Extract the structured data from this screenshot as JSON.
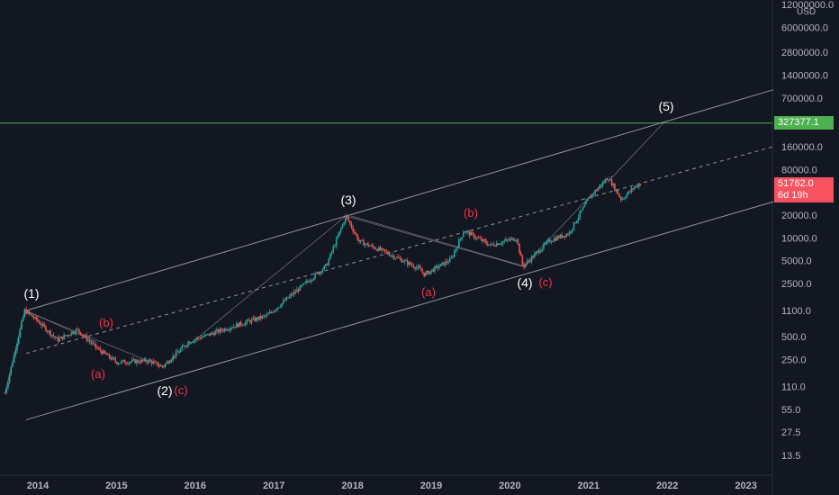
{
  "chart_data": {
    "type": "candlestick",
    "scale": "log",
    "currency": "USD",
    "y_ticks": [
      "12000000.0",
      "6000000.0",
      "2800000.0",
      "1400000.0",
      "700000.0",
      "327377.1",
      "160000.0",
      "80000.0",
      "51762.0",
      "20000.0",
      "10000.0",
      "5000.0",
      "2500.0",
      "1100.0",
      "500.0",
      "250.0",
      "110.0",
      "55.0",
      "27.5",
      "13.5"
    ],
    "y_tick_values": [
      12000000,
      6000000,
      2800000,
      1400000,
      700000,
      327377.1,
      160000,
      80000,
      51762,
      20000,
      10000,
      5000,
      2500,
      1100,
      500,
      250,
      110,
      55,
      27.5,
      13.5
    ],
    "x_ticks": [
      "2014",
      "2015",
      "2016",
      "2017",
      "2018",
      "2019",
      "2020",
      "2021",
      "2022",
      "2023"
    ],
    "target_level": {
      "value": "327377.1",
      "color": "#4caf50"
    },
    "current_price": {
      "value": "51762.0",
      "countdown": "6d 19h",
      "color": "#f7525f"
    },
    "wave_labels": {
      "major": [
        "(1)",
        "(2)",
        "(3)",
        "(4)",
        "(5)"
      ],
      "minor": [
        "(a)",
        "(b)",
        "(c)",
        "(a)",
        "(b)",
        "(c)"
      ]
    },
    "price_series": [
      [
        "2013-08",
        90
      ],
      [
        "2013-11",
        1100
      ],
      [
        "2014-01",
        800
      ],
      [
        "2014-04",
        450
      ],
      [
        "2014-07",
        620
      ],
      [
        "2014-10",
        350
      ],
      [
        "2015-01",
        230
      ],
      [
        "2015-06",
        240
      ],
      [
        "2015-08",
        200
      ],
      [
        "2015-12",
        430
      ],
      [
        "2016-06",
        650
      ],
      [
        "2016-12",
        950
      ],
      [
        "2017-05",
        2200
      ],
      [
        "2017-09",
        4300
      ],
      [
        "2017-12",
        19500
      ],
      [
        "2018-02",
        9000
      ],
      [
        "2018-06",
        6500
      ],
      [
        "2018-11",
        4000
      ],
      [
        "2018-12",
        3300
      ],
      [
        "2019-04",
        5200
      ],
      [
        "2019-06",
        12500
      ],
      [
        "2019-10",
        8000
      ],
      [
        "2020-02",
        10000
      ],
      [
        "2020-03",
        4200
      ],
      [
        "2020-07",
        9200
      ],
      [
        "2020-10",
        11500
      ],
      [
        "2021-01",
        33000
      ],
      [
        "2021-04",
        63000
      ],
      [
        "2021-06",
        32000
      ],
      [
        "2021-08",
        47000
      ],
      [
        "2021-09",
        51762
      ]
    ],
    "colors": {
      "up": "#26a69a",
      "down": "#ef5350",
      "channel": "#b2b5be",
      "target": "#4caf50"
    }
  }
}
